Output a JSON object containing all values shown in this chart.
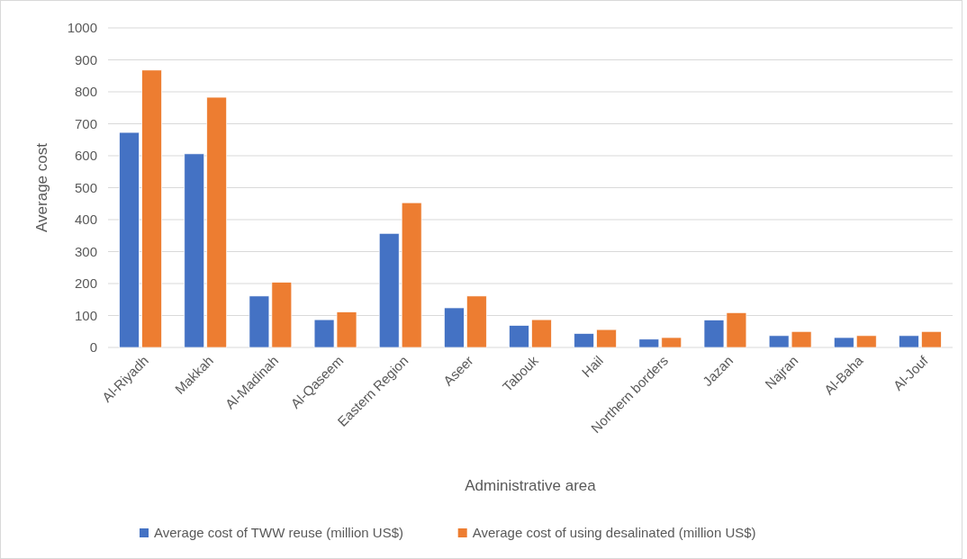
{
  "chart_data": {
    "type": "bar",
    "xlabel": "Administrative area",
    "ylabel": "Average cost",
    "categories": [
      "Al-Riyadh",
      "Makkah",
      "Al-Madinah",
      "Al-Qaseem",
      "Eastern Region",
      "Aseer",
      "Tabouk",
      "Hail",
      "Northern borders",
      "Jazan",
      "Najran",
      "Al-Baha",
      "Al-Jouf"
    ],
    "series": [
      {
        "name": "Average cost of TWW reuse (million US$)",
        "color": "#4472c4",
        "values": [
          673,
          606,
          161,
          87,
          357,
          124,
          69,
          44,
          26,
          86,
          37,
          31,
          37
        ]
      },
      {
        "name": "Average cost of using desalinated (million US$)",
        "color": "#ed7d31",
        "values": [
          868,
          783,
          204,
          111,
          453,
          161,
          87,
          56,
          31,
          109,
          50,
          37,
          50
        ]
      }
    ],
    "ylim": [
      0,
      1000
    ],
    "yticks": [
      0,
      100,
      200,
      300,
      400,
      500,
      600,
      700,
      800,
      900,
      1000
    ],
    "grid": "y",
    "legend": "bottom"
  }
}
